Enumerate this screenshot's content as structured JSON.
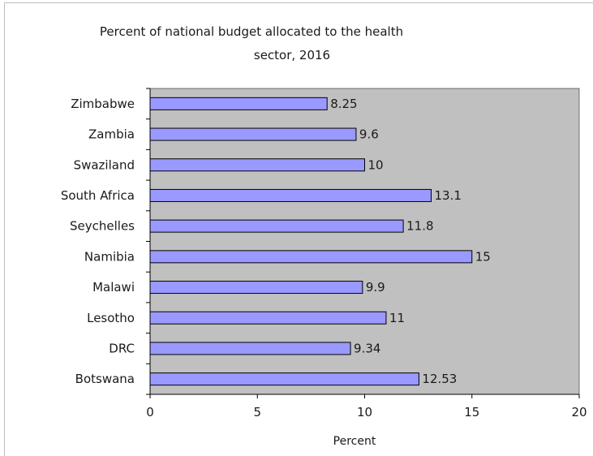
{
  "chart_data": {
    "type": "bar",
    "orientation": "horizontal",
    "title_lines": [
      "Percent of national budget allocated to the health",
      "sector, 2016"
    ],
    "xlabel": "Percent",
    "ylabel": "",
    "categories": [
      "Zimbabwe",
      "Zambia",
      "Swaziland",
      "South Africa",
      "Seychelles",
      "Namibia",
      "Malawi",
      "Lesotho",
      "DRC",
      "Botswana"
    ],
    "values": [
      8.25,
      9.6,
      10,
      13.1,
      11.8,
      15,
      9.9,
      11,
      9.34,
      12.53
    ],
    "value_labels": [
      "8.25",
      "9.6",
      "10",
      "13.1",
      "11.8",
      "15",
      "9.9",
      "11",
      "9.34",
      "12.53"
    ],
    "xlim": [
      0,
      20
    ],
    "xticks": [
      "0",
      "5",
      "10",
      "15",
      "20"
    ],
    "grid": false,
    "legend": "none",
    "colors": {
      "bar_fill": "#9999ff",
      "bar_stroke": "#000000",
      "plot_background": "#c0c0c0"
    }
  }
}
